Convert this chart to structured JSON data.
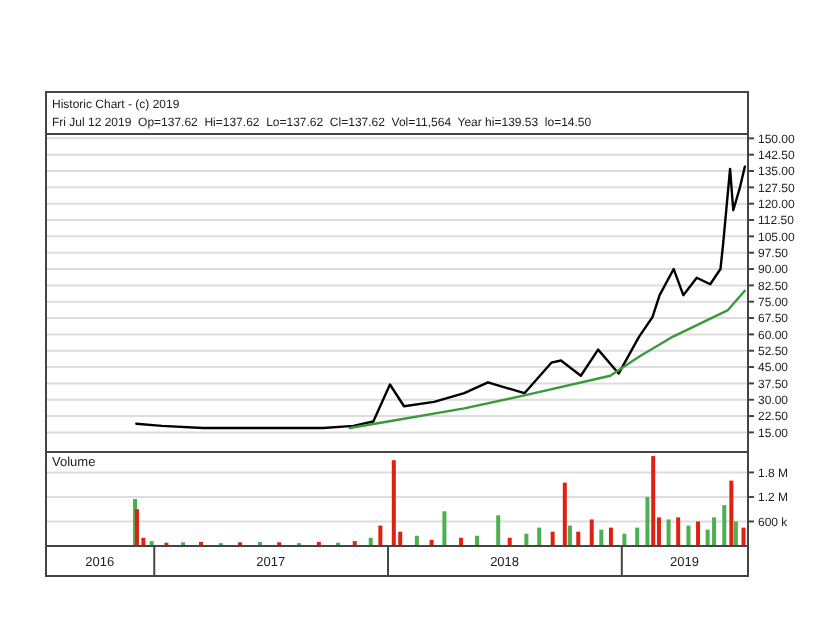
{
  "chart_data": [
    {
      "type": "line",
      "title": "Historic Chart - (c) 2019",
      "subtitle": "Fri Jul 12 2019  Op=137.62  Hi=137.62  Lo=137.62  Cl=137.62  Vol=11,564  Year hi=139.53  lo=14.50",
      "xlim": [
        "2016-07-16",
        "2019-07-17"
      ],
      "ylim": [
        6,
        152
      ],
      "yticks": [
        {
          "value": 15,
          "label": "15.00"
        },
        {
          "value": 22.5,
          "label": "22.50"
        },
        {
          "value": 30,
          "label": "30.00"
        },
        {
          "value": 37.5,
          "label": "37.50"
        },
        {
          "value": 45,
          "label": "45.00"
        },
        {
          "value": 52.5,
          "label": "52.50"
        },
        {
          "value": 60,
          "label": "60.00"
        },
        {
          "value": 67.5,
          "label": "67.50"
        },
        {
          "value": 75,
          "label": "75.00"
        },
        {
          "value": 82.5,
          "label": "82.50"
        },
        {
          "value": 90,
          "label": "90.00"
        },
        {
          "value": 97.5,
          "label": "97.50"
        },
        {
          "value": 105,
          "label": "105.00"
        },
        {
          "value": 112.5,
          "label": "112.50"
        },
        {
          "value": 120,
          "label": "120.00"
        },
        {
          "value": 127.5,
          "label": "127.50"
        },
        {
          "value": 135,
          "label": "135.00"
        },
        {
          "value": 142.5,
          "label": "142.50"
        },
        {
          "value": 150,
          "label": "150.00"
        }
      ],
      "grid": "y",
      "tick_labels": "y",
      "series": [
        {
          "color": "#000000",
          "x": [
            "2016-12-04",
            "2017-01-13",
            "2017-03-18",
            "2017-05-19",
            "2017-07-21",
            "2017-09-22",
            "2017-11-08",
            "2017-12-09",
            "2018-01-04",
            "2018-01-26",
            "2018-03-14",
            "2018-04-30",
            "2018-06-06",
            "2018-08-02",
            "2018-09-13",
            "2018-09-28",
            "2018-10-29",
            "2018-11-25",
            "2018-12-27",
            "2019-01-28",
            "2019-02-18",
            "2019-03-01",
            "2019-03-23",
            "2019-04-07",
            "2019-04-28",
            "2019-05-19",
            "2019-06-04",
            "2019-06-08",
            "2019-06-19",
            "2019-06-24",
            "2019-07-04",
            "2019-07-12"
          ],
          "values": [
            19,
            18,
            17,
            17,
            17,
            17,
            18,
            20,
            37,
            27,
            29,
            33,
            38,
            33,
            47,
            48,
            41,
            53,
            42,
            59,
            68,
            78,
            90,
            78,
            86,
            83,
            90,
            101,
            136,
            117,
            127,
            137
          ]
        },
        {
          "color": "#3a9a3a",
          "x": [
            "2017-11-02",
            "2018-01-01",
            "2018-04-30",
            "2018-08-02",
            "2018-12-14",
            "2019-01-29",
            "2019-03-22",
            "2019-06-15",
            "2019-07-12"
          ],
          "values": [
            17,
            20,
            26,
            32,
            41,
            50,
            59,
            71,
            80
          ]
        }
      ]
    },
    {
      "type": "bar",
      "ylabel": "Volume",
      "xlim": [
        "2016-07-16",
        "2019-07-17"
      ],
      "ylim": [
        0,
        2300000
      ],
      "xticks": [
        {
          "value": "2016-10-08",
          "label": "2016"
        },
        {
          "value": "2017-01-01",
          "label": null
        },
        {
          "value": "2017-07-02",
          "label": "2017"
        },
        {
          "value": "2018-01-01",
          "label": null
        },
        {
          "value": "2018-07-02",
          "label": "2018"
        },
        {
          "value": "2019-01-01",
          "label": null
        },
        {
          "value": "2019-04-09",
          "label": "2019"
        }
      ],
      "yticks": [
        {
          "value": 600000,
          "label": "600 k"
        },
        {
          "value": 1200000,
          "label": "1.2 M"
        },
        {
          "value": 1800000,
          "label": "1.8 M"
        }
      ],
      "grid": "y",
      "series": [
        {
          "x": [
            "2016-12-02",
            "2016-12-05",
            "2016-12-15",
            "2016-12-28",
            "2017-01-20",
            "2017-02-15",
            "2017-03-15",
            "2017-04-15",
            "2017-05-15",
            "2017-06-15",
            "2017-07-15",
            "2017-08-15",
            "2017-09-15",
            "2017-10-15",
            "2017-11-10",
            "2017-12-05",
            "2017-12-20",
            "2018-01-10",
            "2018-01-20",
            "2018-02-15",
            "2018-03-10",
            "2018-03-30",
            "2018-04-25",
            "2018-05-20",
            "2018-06-22",
            "2018-07-10",
            "2018-08-05",
            "2018-08-25",
            "2018-09-15",
            "2018-10-04",
            "2018-10-12",
            "2018-10-25",
            "2018-11-15",
            "2018-11-30",
            "2018-12-15",
            "2019-01-05",
            "2019-01-25",
            "2019-02-10",
            "2019-02-19",
            "2019-02-28",
            "2019-03-15",
            "2019-03-30",
            "2019-04-15",
            "2019-04-30",
            "2019-05-15",
            "2019-05-25",
            "2019-06-10",
            "2019-06-21",
            "2019-06-28",
            "2019-07-10"
          ],
          "values": [
            1150000,
            900000,
            200000,
            120000,
            80000,
            90000,
            100000,
            70000,
            90000,
            100000,
            90000,
            70000,
            100000,
            80000,
            120000,
            200000,
            500000,
            2100000,
            350000,
            250000,
            150000,
            850000,
            200000,
            250000,
            750000,
            200000,
            300000,
            450000,
            350000,
            1550000,
            500000,
            350000,
            650000,
            400000,
            450000,
            300000,
            450000,
            1200000,
            2200000,
            700000,
            650000,
            700000,
            500000,
            600000,
            400000,
            700000,
            1000000,
            1600000,
            600000,
            450000
          ],
          "colors": [
            "#4caf50",
            "#e02010",
            "#e02010",
            "#4caf50",
            "#e02010",
            "#4caf50",
            "#e02010",
            "#4caf50",
            "#e02010",
            "#4caf50",
            "#e02010",
            "#4caf50",
            "#e02010",
            "#4caf50",
            "#e02010",
            "#4caf50",
            "#e02010",
            "#e02010",
            "#e02010",
            "#4caf50",
            "#e02010",
            "#4caf50",
            "#e02010",
            "#4caf50",
            "#4caf50",
            "#e02010",
            "#4caf50",
            "#4caf50",
            "#e02010",
            "#e02010",
            "#4caf50",
            "#e02010",
            "#e02010",
            "#4caf50",
            "#e02010",
            "#4caf50",
            "#4caf50",
            "#4caf50",
            "#e02010",
            "#e02010",
            "#4caf50",
            "#e02010",
            "#4caf50",
            "#e02010",
            "#4caf50",
            "#4caf50",
            "#4caf50",
            "#e02010",
            "#4caf50",
            "#e02010"
          ]
        }
      ]
    }
  ]
}
